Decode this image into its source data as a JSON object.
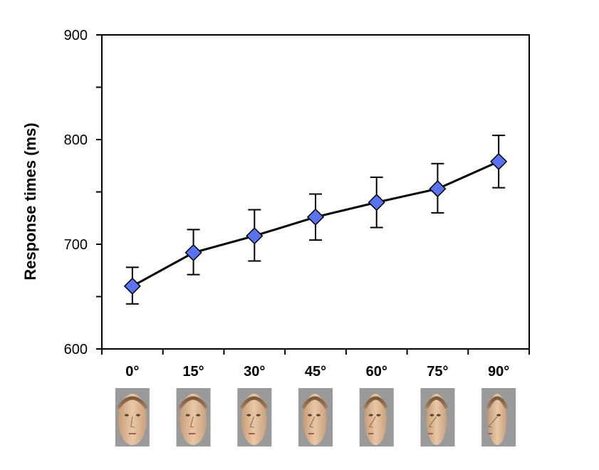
{
  "chart_data": {
    "type": "line",
    "ylabel": "Response times (ms)",
    "ylim": [
      600,
      900
    ],
    "y_ticks": [
      600,
      700,
      800,
      900
    ],
    "y_tick_labels": [
      "600",
      "700",
      "800",
      "900"
    ],
    "categories": [
      "0°",
      "15°",
      "30°",
      "45°",
      "60°",
      "75°",
      "90°"
    ],
    "series": [
      {
        "values": [
          660,
          692,
          708,
          726,
          740,
          753,
          779
        ],
        "error_low": [
          643,
          671,
          684,
          704,
          716,
          730,
          754
        ],
        "error_high": [
          678,
          714,
          733,
          748,
          764,
          777,
          804
        ]
      }
    ],
    "marker": "diamond",
    "marker_color": "#5a73f0",
    "line_color": "#000000",
    "grid": false,
    "legend": "none",
    "face_thumbnails": [
      "face-0deg",
      "face-15deg",
      "face-30deg",
      "face-45deg",
      "face-60deg",
      "face-75deg",
      "face-90deg"
    ]
  }
}
